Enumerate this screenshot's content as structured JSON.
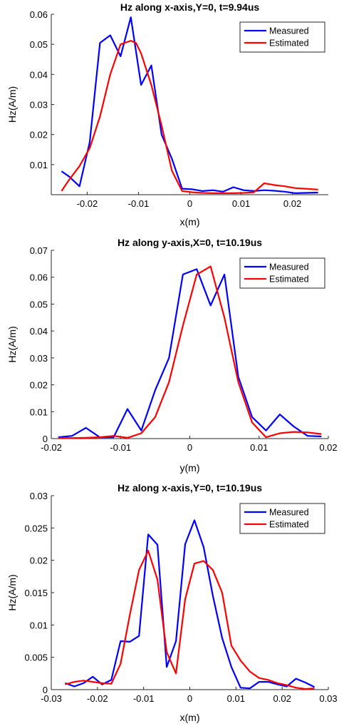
{
  "chart_data": [
    {
      "type": "line",
      "title": "Hz along x-axis,Y=0, t=9.94us",
      "xlabel": "x(m)",
      "ylabel": "Hz(A/m)",
      "xlim": [
        -0.027,
        0.027
      ],
      "ylim": [
        0,
        0.06
      ],
      "xticks": [
        -0.02,
        -0.01,
        0,
        0.01,
        0.02
      ],
      "xtick_labels": [
        "-0.02",
        "-0.01",
        "0",
        "0.01",
        "0.02"
      ],
      "yticks": [
        0.01,
        0.02,
        0.03,
        0.04,
        0.05,
        0.06
      ],
      "ytick_labels": [
        "0.01",
        "0.02",
        "0.03",
        "0.04",
        "0.05",
        "0.06"
      ],
      "legend_position": "top-right",
      "series": [
        {
          "name": "Measured",
          "color": "#0000ff",
          "x": [
            -0.025,
            -0.0235,
            -0.0215,
            -0.0195,
            -0.0175,
            -0.0155,
            -0.0135,
            -0.0115,
            -0.0095,
            -0.0075,
            -0.0055,
            -0.0035,
            -0.0015,
            0.0005,
            0.0025,
            0.0045,
            0.0065,
            0.0085,
            0.0105,
            0.0125,
            0.0145,
            0.0165,
            0.0185,
            0.0205,
            0.0225,
            0.025
          ],
          "y": [
            0.0078,
            0.006,
            0.0028,
            0.0175,
            0.0505,
            0.053,
            0.046,
            0.059,
            0.0365,
            0.043,
            0.02,
            0.012,
            0.002,
            0.0018,
            0.0012,
            0.0015,
            0.001,
            0.0025,
            0.0015,
            0.0012,
            0.0015,
            0.0013,
            0.001,
            0.0005,
            0.0006,
            0.0007
          ]
        },
        {
          "name": "Estimated",
          "color": "#ff0000",
          "x": [
            -0.025,
            -0.0235,
            -0.0215,
            -0.0195,
            -0.0175,
            -0.0155,
            -0.0135,
            -0.0115,
            -0.0105,
            -0.0095,
            -0.0075,
            -0.0055,
            -0.0035,
            -0.0015,
            0.0005,
            0.0025,
            0.0045,
            0.0065,
            0.0085,
            0.0105,
            0.0125,
            0.0145,
            0.0165,
            0.0185,
            0.0205,
            0.0225,
            0.025
          ],
          "y": [
            0.0012,
            0.005,
            0.0095,
            0.0155,
            0.026,
            0.04,
            0.05,
            0.0512,
            0.0505,
            0.047,
            0.0365,
            0.023,
            0.008,
            0.0012,
            0.0008,
            0.0006,
            0.0005,
            0.0005,
            0.0005,
            0.0006,
            0.0008,
            0.0038,
            0.0032,
            0.0028,
            0.0022,
            0.002,
            0.0017
          ]
        }
      ]
    },
    {
      "type": "line",
      "title": "Hz along y-axis,X=0, t=10.19us",
      "xlabel": "y(m)",
      "ylabel": "Hz(A/m)",
      "xlim": [
        -0.02,
        0.02
      ],
      "ylim": [
        0,
        0.07
      ],
      "xticks": [
        -0.02,
        -0.01,
        0,
        0.01,
        0.02
      ],
      "xtick_labels": [
        "-0.02",
        "-0.01",
        "0",
        "0.01",
        "0.02"
      ],
      "yticks": [
        0,
        0.01,
        0.02,
        0.03,
        0.04,
        0.05,
        0.06,
        0.07
      ],
      "ytick_labels": [
        "0",
        "0.01",
        "0.02",
        "0.03",
        "0.04",
        "0.05",
        "0.06",
        "0.07"
      ],
      "legend_position": "top-right",
      "series": [
        {
          "name": "Measured",
          "color": "#0000ff",
          "x": [
            -0.019,
            -0.017,
            -0.015,
            -0.013,
            -0.011,
            -0.009,
            -0.007,
            -0.005,
            -0.003,
            -0.001,
            0.001,
            0.003,
            0.005,
            0.007,
            0.009,
            0.011,
            0.013,
            0.015,
            0.017,
            0.019
          ],
          "y": [
            0.0005,
            0.001,
            0.004,
            0.0005,
            0.0005,
            0.011,
            0.003,
            0.018,
            0.03,
            0.061,
            0.063,
            0.0495,
            0.061,
            0.023,
            0.008,
            0.003,
            0.009,
            0.0045,
            0.001,
            0.0008
          ]
        },
        {
          "name": "Estimated",
          "color": "#ff0000",
          "x": [
            -0.019,
            -0.017,
            -0.015,
            -0.013,
            -0.011,
            -0.009,
            -0.007,
            -0.005,
            -0.003,
            -0.001,
            0.001,
            0.003,
            0.005,
            0.007,
            0.009,
            0.011,
            0.013,
            0.015,
            0.017,
            0.019
          ],
          "y": [
            0.0002,
            0.0002,
            0.0003,
            0.0005,
            0.001,
            0.0003,
            0.002,
            0.008,
            0.021,
            0.042,
            0.061,
            0.064,
            0.045,
            0.021,
            0.006,
            0.0005,
            0.002,
            0.0025,
            0.0023,
            0.0017
          ]
        }
      ]
    },
    {
      "type": "line",
      "title": "Hz along x-axis,Y=0, t=10.19us",
      "xlabel": "x(m)",
      "ylabel": "Hz(A/m)",
      "xlim": [
        -0.03,
        0.03
      ],
      "ylim": [
        0,
        0.03
      ],
      "xticks": [
        -0.03,
        -0.02,
        -0.01,
        0,
        0.01,
        0.02,
        0.03
      ],
      "xtick_labels": [
        "-0.03",
        "-0.02",
        "-0.01",
        "0",
        "0.01",
        "0.02",
        "0.03"
      ],
      "yticks": [
        0,
        0.005,
        0.01,
        0.015,
        0.02,
        0.025,
        0.03
      ],
      "ytick_labels": [
        "0",
        "0.005",
        "0.01",
        "0.015",
        "0.02",
        "0.025",
        "0.03"
      ],
      "legend_position": "top-right",
      "series": [
        {
          "name": "Measured",
          "color": "#0000ff",
          "x": [
            -0.027,
            -0.025,
            -0.023,
            -0.021,
            -0.019,
            -0.017,
            -0.015,
            -0.013,
            -0.011,
            -0.009,
            -0.007,
            -0.005,
            -0.003,
            -0.001,
            0.001,
            0.003,
            0.005,
            0.007,
            0.009,
            0.011,
            0.013,
            0.015,
            0.017,
            0.019,
            0.021,
            0.023,
            0.025,
            0.027
          ],
          "y": [
            0.001,
            0.0005,
            0.001,
            0.002,
            0.0008,
            0.0015,
            0.0075,
            0.0074,
            0.0083,
            0.024,
            0.0224,
            0.0035,
            0.0075,
            0.0225,
            0.0262,
            0.022,
            0.0145,
            0.008,
            0.0035,
            0.0003,
            0.0002,
            0.0012,
            0.0012,
            0.0008,
            0.0005,
            0.0017,
            0.0011,
            0.0004
          ]
        },
        {
          "name": "Estimated",
          "color": "#ff0000",
          "x": [
            -0.027,
            -0.025,
            -0.023,
            -0.021,
            -0.019,
            -0.017,
            -0.015,
            -0.013,
            -0.011,
            -0.009,
            -0.007,
            -0.005,
            -0.003,
            -0.001,
            0.001,
            0.003,
            0.005,
            0.007,
            0.009,
            0.011,
            0.013,
            0.015,
            0.017,
            0.019,
            0.021,
            0.023,
            0.025,
            0.027
          ],
          "y": [
            0.0008,
            0.0012,
            0.0014,
            0.0012,
            0.001,
            0.0009,
            0.004,
            0.0115,
            0.0185,
            0.0215,
            0.017,
            0.0058,
            0.0025,
            0.014,
            0.0195,
            0.0199,
            0.0185,
            0.015,
            0.0068,
            0.0045,
            0.0028,
            0.0018,
            0.0015,
            0.001,
            0.0007,
            0.0003,
            0.0001,
            0.0002
          ]
        }
      ]
    }
  ]
}
